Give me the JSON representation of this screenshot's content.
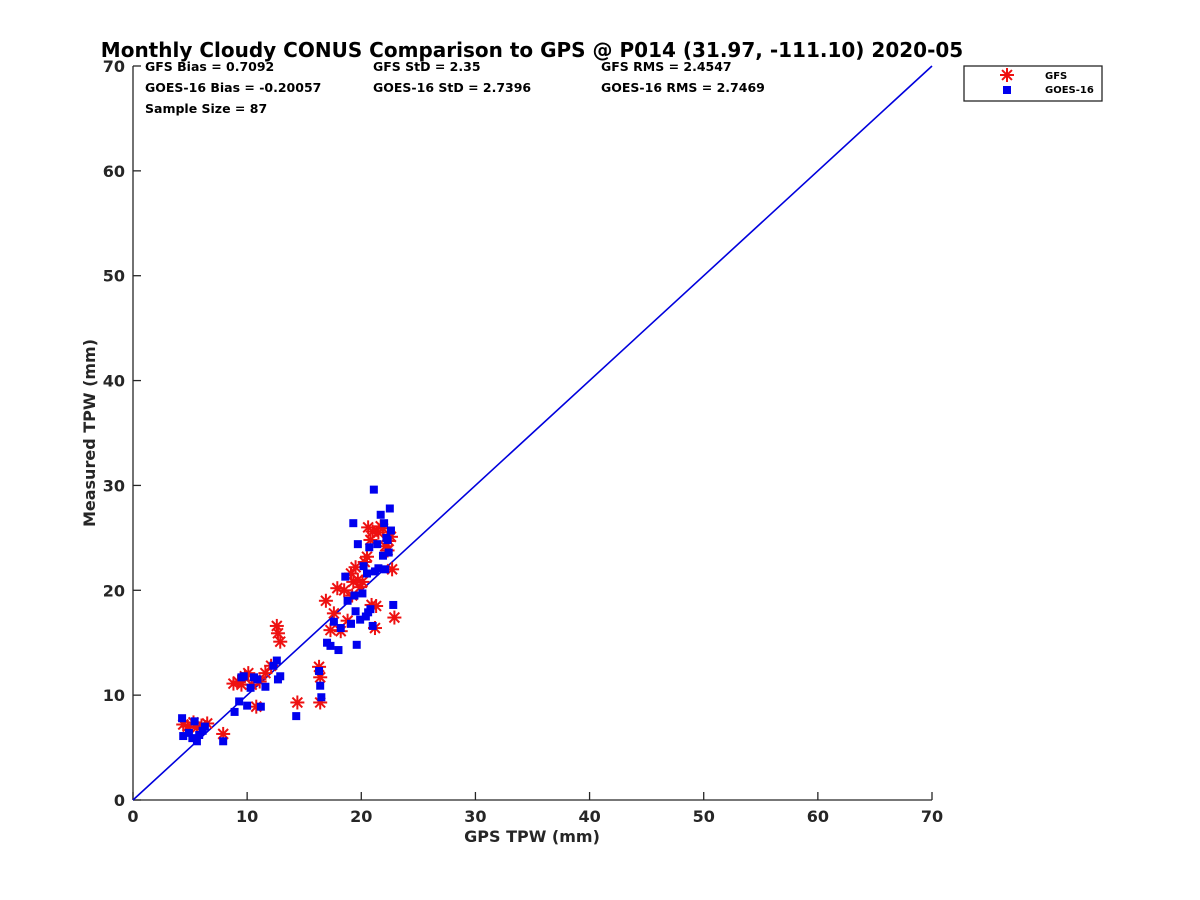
{
  "chart_data": {
    "type": "scatter",
    "title": "Monthly Cloudy CONUS Comparison to GPS @ P014 (31.97, -111.10) 2020-05",
    "xlabel": "GPS TPW (mm)",
    "ylabel": "Measured TPW (mm)",
    "xlim": [
      0,
      70
    ],
    "ylim": [
      0,
      70
    ],
    "xticks": [
      0,
      10,
      20,
      30,
      40,
      50,
      60,
      70
    ],
    "yticks": [
      0,
      10,
      20,
      30,
      40,
      50,
      60,
      70
    ],
    "grid": false,
    "legend_position": "top-right outside plot",
    "reference_line": {
      "x": [
        0,
        70
      ],
      "y": [
        0,
        70
      ],
      "color": "#0000dd"
    },
    "stats": {
      "gfs_bias": "GFS Bias = 0.7092",
      "gfs_std": "GFS StD = 2.35",
      "gfs_rms": "GFS RMS = 2.4547",
      "goes_bias": "GOES-16 Bias = -0.20057",
      "goes_std": "GOES-16 StD = 2.7396",
      "goes_rms": "GOES-16 RMS = 2.7469",
      "sample_size": "Sample Size = 87"
    },
    "series": [
      {
        "name": "GFS",
        "marker": "asterisk",
        "color": "#ee1111",
        "points": [
          [
            4.4,
            7.2
          ],
          [
            4.8,
            7.0
          ],
          [
            5.3,
            7.4
          ],
          [
            5.6,
            6.9
          ],
          [
            6.0,
            7.1
          ],
          [
            6.5,
            7.3
          ],
          [
            7.9,
            6.3
          ],
          [
            8.8,
            11.1
          ],
          [
            9.2,
            11.3
          ],
          [
            9.5,
            11.0
          ],
          [
            9.8,
            11.8
          ],
          [
            10.1,
            12.1
          ],
          [
            10.4,
            11.0
          ],
          [
            10.8,
            8.9
          ],
          [
            11.1,
            11.3
          ],
          [
            11.6,
            12.1
          ],
          [
            12.1,
            12.8
          ],
          [
            12.6,
            16.6
          ],
          [
            12.7,
            15.9
          ],
          [
            12.9,
            15.1
          ],
          [
            14.4,
            9.3
          ],
          [
            16.3,
            12.7
          ],
          [
            16.4,
            11.7
          ],
          [
            16.4,
            9.3
          ],
          [
            16.9,
            19.0
          ],
          [
            17.3,
            16.2
          ],
          [
            17.6,
            17.8
          ],
          [
            17.9,
            20.2
          ],
          [
            18.2,
            16.1
          ],
          [
            18.5,
            20.0
          ],
          [
            18.8,
            17.1
          ],
          [
            19.1,
            21.6
          ],
          [
            19.3,
            20.8
          ],
          [
            19.5,
            22.2
          ],
          [
            19.7,
            21.0
          ],
          [
            19.9,
            20.3
          ],
          [
            20.1,
            20.8
          ],
          [
            20.3,
            22.7
          ],
          [
            20.5,
            23.2
          ],
          [
            20.6,
            26.0
          ],
          [
            20.8,
            24.8
          ],
          [
            20.9,
            18.6
          ],
          [
            21.0,
            25.6
          ],
          [
            21.2,
            16.4
          ],
          [
            21.3,
            18.5
          ],
          [
            21.5,
            25.5
          ],
          [
            21.7,
            26.1
          ],
          [
            21.9,
            25.9
          ],
          [
            22.1,
            24.2
          ],
          [
            22.3,
            23.8
          ],
          [
            22.4,
            24.7
          ],
          [
            22.6,
            25.1
          ],
          [
            22.7,
            22.0
          ],
          [
            22.9,
            17.4
          ],
          [
            19.2,
            19.5
          ]
        ]
      },
      {
        "name": "GOES-16",
        "marker": "square",
        "color": "#0000ee",
        "points": [
          [
            4.3,
            7.8
          ],
          [
            4.4,
            6.1
          ],
          [
            4.9,
            6.4
          ],
          [
            5.2,
            5.9
          ],
          [
            5.4,
            7.5
          ],
          [
            5.6,
            5.6
          ],
          [
            5.8,
            6.2
          ],
          [
            6.1,
            6.6
          ],
          [
            6.3,
            7.0
          ],
          [
            7.9,
            5.6
          ],
          [
            8.9,
            8.4
          ],
          [
            9.3,
            9.4
          ],
          [
            9.5,
            11.7
          ],
          [
            9.7,
            11.8
          ],
          [
            10.0,
            9.0
          ],
          [
            10.3,
            10.7
          ],
          [
            10.6,
            11.7
          ],
          [
            10.9,
            11.5
          ],
          [
            11.2,
            8.9
          ],
          [
            11.6,
            10.8
          ],
          [
            12.3,
            12.8
          ],
          [
            12.6,
            13.3
          ],
          [
            12.9,
            11.8
          ],
          [
            12.7,
            11.5
          ],
          [
            14.3,
            8.0
          ],
          [
            16.3,
            12.3
          ],
          [
            16.4,
            10.9
          ],
          [
            16.5,
            9.8
          ],
          [
            17.0,
            15.0
          ],
          [
            17.3,
            14.7
          ],
          [
            17.6,
            17.0
          ],
          [
            18.0,
            14.3
          ],
          [
            18.2,
            16.4
          ],
          [
            18.6,
            21.3
          ],
          [
            18.8,
            19.0
          ],
          [
            19.1,
            16.8
          ],
          [
            19.3,
            26.4
          ],
          [
            19.4,
            19.5
          ],
          [
            19.5,
            18.0
          ],
          [
            19.6,
            14.8
          ],
          [
            19.7,
            24.4
          ],
          [
            19.9,
            17.2
          ],
          [
            20.1,
            19.7
          ],
          [
            20.2,
            22.3
          ],
          [
            20.4,
            17.5
          ],
          [
            20.5,
            21.6
          ],
          [
            20.6,
            17.9
          ],
          [
            20.7,
            24.1
          ],
          [
            20.8,
            18.2
          ],
          [
            21.0,
            16.6
          ],
          [
            21.1,
            29.6
          ],
          [
            21.2,
            21.8
          ],
          [
            21.4,
            24.4
          ],
          [
            21.5,
            22.1
          ],
          [
            21.7,
            27.2
          ],
          [
            21.9,
            23.3
          ],
          [
            22.0,
            26.4
          ],
          [
            22.1,
            22.0
          ],
          [
            22.2,
            25.0
          ],
          [
            22.3,
            24.8
          ],
          [
            22.4,
            23.6
          ],
          [
            22.5,
            27.8
          ],
          [
            22.6,
            25.7
          ],
          [
            22.8,
            18.6
          ]
        ]
      }
    ]
  }
}
